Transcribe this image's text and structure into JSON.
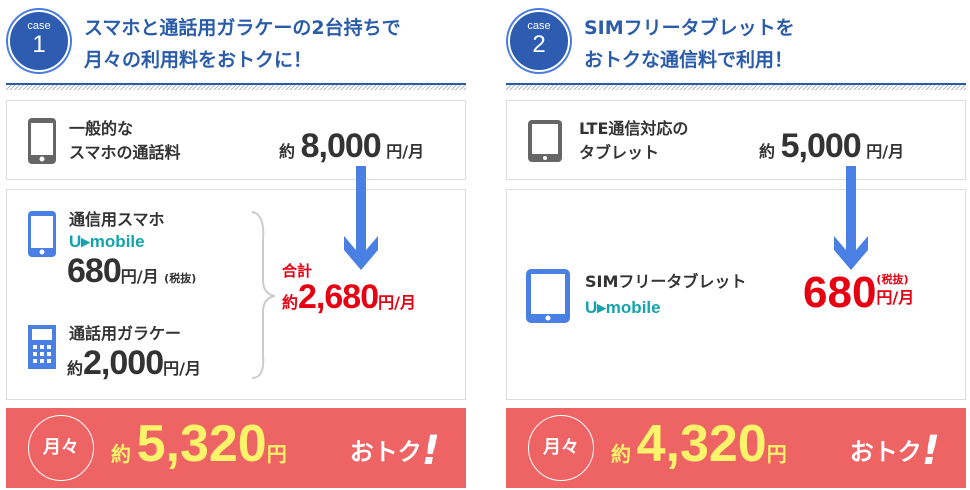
{
  "cases": [
    {
      "badge_label": "case",
      "badge_number": "1",
      "title_line1": "スマホと通話用ガラケーの2台持ちで",
      "title_line2": "月々の利用料をおトクに！",
      "before": {
        "line1": "一般的な",
        "line2": "スマホの通話料",
        "prefix": "約",
        "amount": "8,000",
        "unit": "円/月"
      },
      "after": {
        "item1": {
          "label": "通信用スマホ",
          "brand": "U▸mobile",
          "amount": "680",
          "unit": "円/月",
          "note": "(税抜)"
        },
        "item2": {
          "label": "通話用ガラケー",
          "prefix": "約",
          "amount": "2,000",
          "unit": "円/月"
        },
        "total_label": "合計",
        "total_prefix": "約",
        "total_amount": "2,680",
        "total_unit": "円/月"
      },
      "savings": {
        "period": "月々",
        "prefix": "約",
        "amount": "5,320",
        "unit": "円",
        "tagline": "おトク",
        "exclaim": "!"
      }
    },
    {
      "badge_label": "case",
      "badge_number": "2",
      "title_line1": "SIMフリータブレットを",
      "title_line2": "おトクな通信料で利用！",
      "before": {
        "line1": "LTE通信対応の",
        "line2": "タブレット",
        "prefix": "約",
        "amount": "5,000",
        "unit": "円/月"
      },
      "after": {
        "label": "SIMフリータブレット",
        "brand": "U▸mobile",
        "amount": "680",
        "note": "(税抜)",
        "unit": "円/月"
      },
      "savings": {
        "period": "月々",
        "prefix": "約",
        "amount": "4,320",
        "unit": "円",
        "tagline": "おトク",
        "exclaim": "!"
      }
    }
  ],
  "colors": {
    "heading": "#2a5caa",
    "accent_blue": "#4a80e4",
    "red": "#e60012",
    "banner": "#ee6363",
    "savings_yellow": "#fbf36a",
    "brand_teal": "#13a3ad"
  }
}
